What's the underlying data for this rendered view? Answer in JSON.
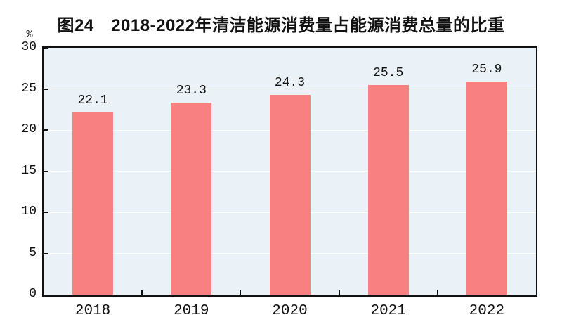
{
  "chart_data": {
    "type": "bar",
    "title": "图24　2018-2022年清洁能源消费量占能源消费总量的比重",
    "unit_label": "%",
    "categories": [
      "2018",
      "2019",
      "2020",
      "2021",
      "2022"
    ],
    "values": [
      22.1,
      23.3,
      24.3,
      25.5,
      25.9
    ],
    "value_labels": [
      "22.1",
      "23.3",
      "24.3",
      "25.5",
      "25.9"
    ],
    "xlabel": "",
    "ylabel": "%",
    "ylim": [
      0,
      30
    ],
    "yticks": [
      0,
      5,
      10,
      15,
      20,
      25,
      30
    ],
    "grid": "horizontal",
    "legend": "none",
    "colors": {
      "bar": "#f98081",
      "plot_bg": "#eaf2f7",
      "gridline": "#fdfefe",
      "axis": "#111111",
      "text": "#111111",
      "page_bg": "#ffffff"
    }
  }
}
